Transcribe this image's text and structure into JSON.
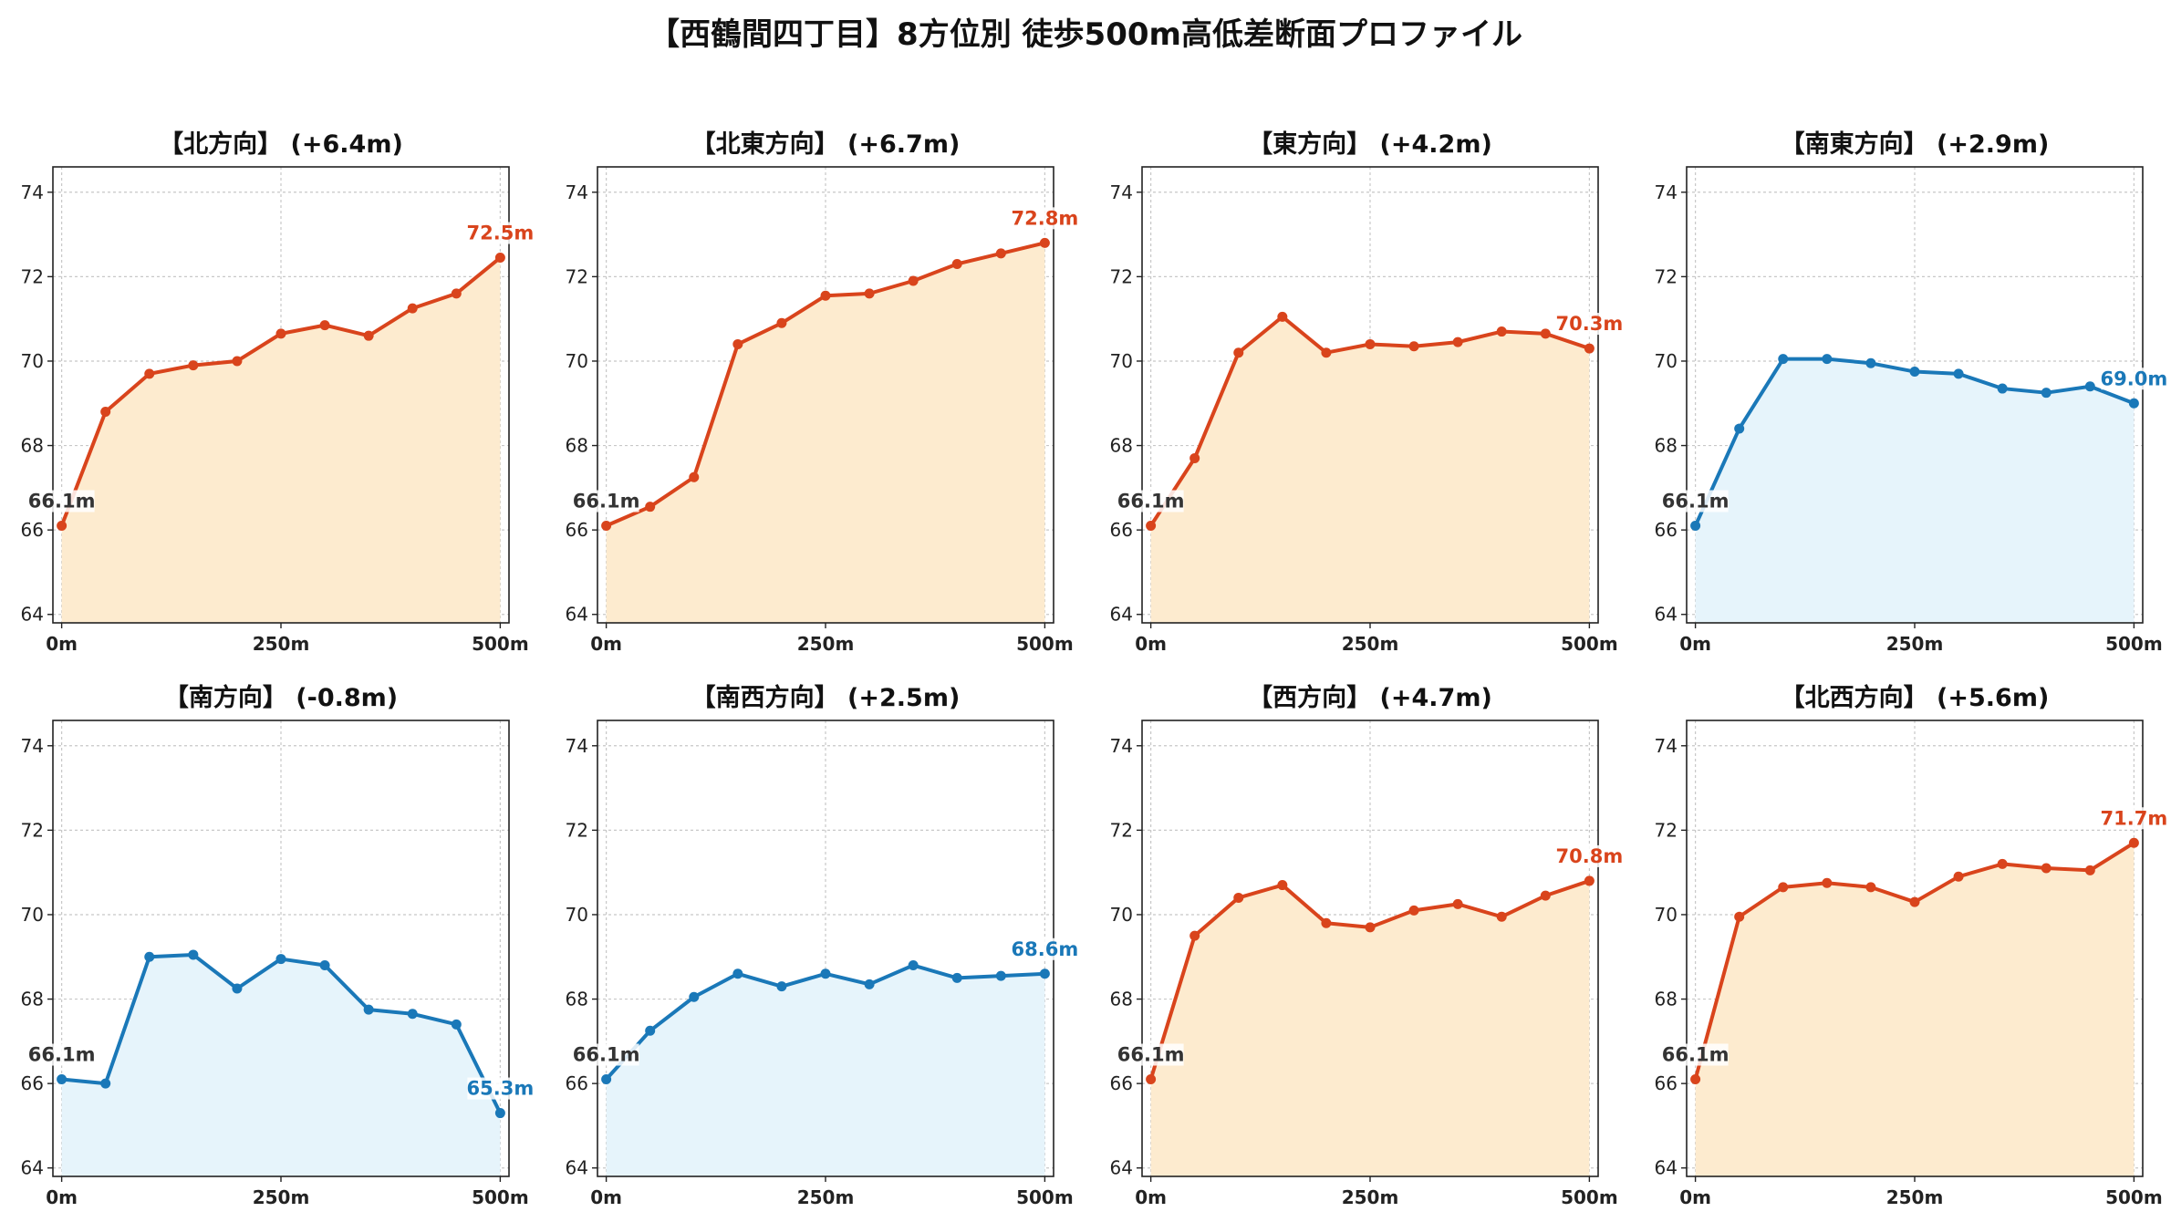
{
  "title": "【西鶴間四丁目】8方位別 徒歩500m高低差断面プロファイル",
  "colors": {
    "up_line": "#d9441c",
    "up_fill": "#fdebcf",
    "down_line": "#1a78b8",
    "down_fill": "#e6f4fb",
    "start_label": "#333333"
  },
  "chart_data": [
    {
      "type": "area",
      "title": "【北方向】 (+6.4m)",
      "trend": "up",
      "x": [
        0,
        50,
        100,
        150,
        200,
        250,
        300,
        350,
        400,
        450,
        500
      ],
      "y": [
        66.1,
        68.8,
        69.7,
        69.9,
        70.0,
        70.65,
        70.85,
        70.6,
        71.25,
        71.6,
        72.45
      ],
      "xticks": [
        0,
        250,
        500
      ],
      "xtick_labels": [
        "0m",
        "250m",
        "500m"
      ],
      "yticks": [
        64,
        66,
        68,
        70,
        72,
        74
      ],
      "ylim": [
        63.8,
        74.6
      ],
      "xlim": [
        -10,
        510
      ],
      "grid": true,
      "start_label": "66.1m",
      "end_label": "72.5m"
    },
    {
      "type": "area",
      "title": "【北東方向】 (+6.7m)",
      "trend": "up",
      "x": [
        0,
        50,
        100,
        150,
        200,
        250,
        300,
        350,
        400,
        450,
        500
      ],
      "y": [
        66.1,
        66.55,
        67.25,
        70.4,
        70.9,
        71.55,
        71.6,
        71.9,
        72.3,
        72.55,
        72.8
      ],
      "xticks": [
        0,
        250,
        500
      ],
      "xtick_labels": [
        "0m",
        "250m",
        "500m"
      ],
      "yticks": [
        64,
        66,
        68,
        70,
        72,
        74
      ],
      "ylim": [
        63.8,
        74.6
      ],
      "xlim": [
        -10,
        510
      ],
      "grid": true,
      "start_label": "66.1m",
      "end_label": "72.8m"
    },
    {
      "type": "area",
      "title": "【東方向】 (+4.2m)",
      "trend": "up",
      "x": [
        0,
        50,
        100,
        150,
        200,
        250,
        300,
        350,
        400,
        450,
        500
      ],
      "y": [
        66.1,
        67.7,
        70.2,
        71.05,
        70.2,
        70.4,
        70.35,
        70.45,
        70.7,
        70.65,
        70.3
      ],
      "xticks": [
        0,
        250,
        500
      ],
      "xtick_labels": [
        "0m",
        "250m",
        "500m"
      ],
      "yticks": [
        64,
        66,
        68,
        70,
        72,
        74
      ],
      "ylim": [
        63.8,
        74.6
      ],
      "xlim": [
        -10,
        510
      ],
      "grid": true,
      "start_label": "66.1m",
      "end_label": "70.3m"
    },
    {
      "type": "area",
      "title": "【南東方向】 (+2.9m)",
      "trend": "down",
      "x": [
        0,
        50,
        100,
        150,
        200,
        250,
        300,
        350,
        400,
        450,
        500
      ],
      "y": [
        66.1,
        68.4,
        70.05,
        70.05,
        69.95,
        69.75,
        69.7,
        69.35,
        69.25,
        69.4,
        69.0
      ],
      "xticks": [
        0,
        250,
        500
      ],
      "xtick_labels": [
        "0m",
        "250m",
        "500m"
      ],
      "yticks": [
        64,
        66,
        68,
        70,
        72,
        74
      ],
      "ylim": [
        63.8,
        74.6
      ],
      "xlim": [
        -10,
        510
      ],
      "grid": true,
      "start_label": "66.1m",
      "end_label": "69.0m"
    },
    {
      "type": "area",
      "title": "【南方向】 (-0.8m)",
      "trend": "down",
      "x": [
        0,
        50,
        100,
        150,
        200,
        250,
        300,
        350,
        400,
        450,
        500
      ],
      "y": [
        66.1,
        66.0,
        69.0,
        69.05,
        68.25,
        68.95,
        68.8,
        67.75,
        67.65,
        67.4,
        65.3
      ],
      "xticks": [
        0,
        250,
        500
      ],
      "xtick_labels": [
        "0m",
        "250m",
        "500m"
      ],
      "yticks": [
        64,
        66,
        68,
        70,
        72,
        74
      ],
      "ylim": [
        63.8,
        74.6
      ],
      "xlim": [
        -10,
        510
      ],
      "grid": true,
      "start_label": "66.1m",
      "end_label": "65.3m"
    },
    {
      "type": "area",
      "title": "【南西方向】 (+2.5m)",
      "trend": "down",
      "x": [
        0,
        50,
        100,
        150,
        200,
        250,
        300,
        350,
        400,
        450,
        500
      ],
      "y": [
        66.1,
        67.25,
        68.05,
        68.6,
        68.3,
        68.6,
        68.35,
        68.8,
        68.5,
        68.55,
        68.6
      ],
      "xticks": [
        0,
        250,
        500
      ],
      "xtick_labels": [
        "0m",
        "250m",
        "500m"
      ],
      "yticks": [
        64,
        66,
        68,
        70,
        72,
        74
      ],
      "ylim": [
        63.8,
        74.6
      ],
      "xlim": [
        -10,
        510
      ],
      "grid": true,
      "start_label": "66.1m",
      "end_label": "68.6m"
    },
    {
      "type": "area",
      "title": "【西方向】 (+4.7m)",
      "trend": "up",
      "x": [
        0,
        50,
        100,
        150,
        200,
        250,
        300,
        350,
        400,
        450,
        500
      ],
      "y": [
        66.1,
        69.5,
        70.4,
        70.7,
        69.8,
        69.7,
        70.1,
        70.25,
        69.95,
        70.45,
        70.8
      ],
      "xticks": [
        0,
        250,
        500
      ],
      "xtick_labels": [
        "0m",
        "250m",
        "500m"
      ],
      "yticks": [
        64,
        66,
        68,
        70,
        72,
        74
      ],
      "ylim": [
        63.8,
        74.6
      ],
      "xlim": [
        -10,
        510
      ],
      "grid": true,
      "start_label": "66.1m",
      "end_label": "70.8m"
    },
    {
      "type": "area",
      "title": "【北西方向】 (+5.6m)",
      "trend": "up",
      "x": [
        0,
        50,
        100,
        150,
        200,
        250,
        300,
        350,
        400,
        450,
        500
      ],
      "y": [
        66.1,
        69.95,
        70.65,
        70.75,
        70.65,
        70.3,
        70.9,
        71.2,
        71.1,
        71.05,
        71.7
      ],
      "xticks": [
        0,
        250,
        500
      ],
      "xtick_labels": [
        "0m",
        "250m",
        "500m"
      ],
      "yticks": [
        64,
        66,
        68,
        70,
        72,
        74
      ],
      "ylim": [
        63.8,
        74.6
      ],
      "xlim": [
        -10,
        510
      ],
      "grid": true,
      "start_label": "66.1m",
      "end_label": "71.7m"
    }
  ]
}
